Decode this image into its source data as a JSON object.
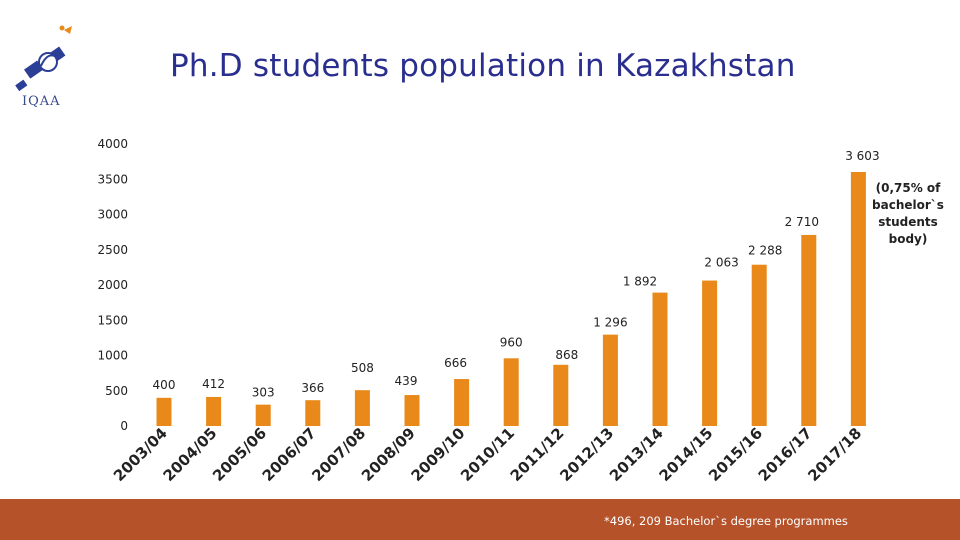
{
  "title": "Ph.D students population in Kazakhstan",
  "logo": {
    "text": "IQAA",
    "icon": "iqaa-satellite-logo"
  },
  "note": "(0,75% of bachelor`s students body)",
  "footnote": "*496, 209 Bachelor`s degree programmes",
  "colors": {
    "bar": "#e8891a",
    "title": "#2a2f8f",
    "footer": "#b5522a"
  },
  "chart_data": {
    "type": "bar",
    "title": "Ph.D students population in Kazakhstan",
    "xlabel": "",
    "ylabel": "",
    "ylim": [
      0,
      4000
    ],
    "yticks": [
      "0",
      "500",
      "1000",
      "1500",
      "2000",
      "2500",
      "3000",
      "3500",
      "4000"
    ],
    "grid": false,
    "categories": [
      "2003/04",
      "2004/05",
      "2005/06",
      "2006/07",
      "2007/08",
      "2008/09",
      "2009/10",
      "2010/11",
      "2011/12",
      "2012/13",
      "2013/14",
      "2014/15",
      "2015/16",
      "2016/17",
      "2017/18"
    ],
    "values": [
      400,
      412,
      303,
      366,
      508,
      439,
      666,
      960,
      868,
      1296,
      1892,
      2063,
      2288,
      2710,
      3603
    ],
    "value_labels": [
      "400",
      "412",
      "303",
      "366",
      "508",
      "439",
      "666",
      "960",
      "868",
      "1 296",
      "1 892",
      "2 063",
      "2 288",
      "2 710",
      "3 603"
    ]
  }
}
